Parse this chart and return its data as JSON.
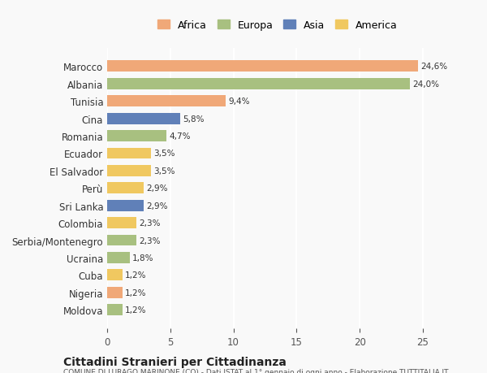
{
  "countries": [
    "Marocco",
    "Albania",
    "Tunisia",
    "Cina",
    "Romania",
    "Ecuador",
    "El Salvador",
    "Perù",
    "Sri Lanka",
    "Colombia",
    "Serbia/Montenegro",
    "Ucraina",
    "Cuba",
    "Nigeria",
    "Moldova"
  ],
  "values": [
    24.6,
    24.0,
    9.4,
    5.8,
    4.7,
    3.5,
    3.5,
    2.9,
    2.9,
    2.3,
    2.3,
    1.8,
    1.2,
    1.2,
    1.2
  ],
  "continents": [
    "Africa",
    "Europa",
    "Africa",
    "Asia",
    "Europa",
    "America",
    "America",
    "America",
    "Asia",
    "America",
    "Europa",
    "Europa",
    "America",
    "Africa",
    "Europa"
  ],
  "continent_colors": {
    "Africa": "#F0A878",
    "Europa": "#A8C080",
    "Asia": "#6080B8",
    "America": "#F0C860"
  },
  "legend_order": [
    "Africa",
    "Europa",
    "Asia",
    "America"
  ],
  "title": "Cittadini Stranieri per Cittadinanza",
  "subtitle": "COMUNE DI LURAGO MARINONE (CO) - Dati ISTAT al 1° gennaio di ogni anno - Elaborazione TUTTITALIA.IT",
  "xlim": [
    0,
    27
  ],
  "xticks": [
    0,
    5,
    10,
    15,
    20,
    25
  ],
  "background_color": "#f9f9f9",
  "grid_color": "#ffffff",
  "bar_height": 0.65
}
